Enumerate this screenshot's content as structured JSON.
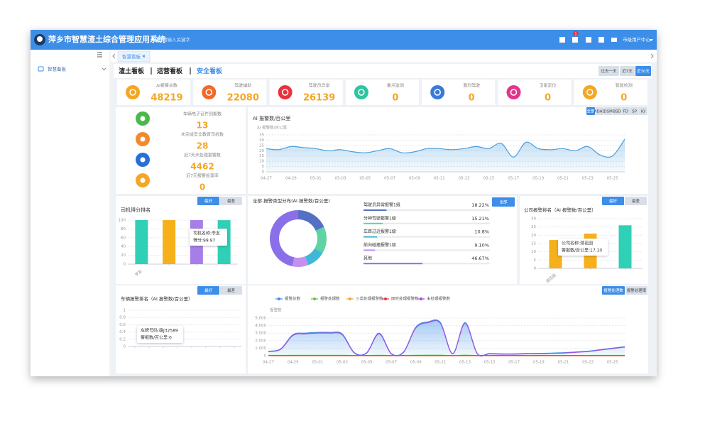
{
  "header": {
    "title": "萍乡市智慧渣土综合管理应用系统",
    "search_placeholder": "请输入关键字",
    "notification_count": 1,
    "user": "市级用户中心"
  },
  "sidebar": {
    "items": [
      "智慧看板"
    ]
  },
  "tabs": [
    "智慧看板"
  ],
  "board_tabs": [
    "渣土看板",
    "运营看板",
    "安全看板"
  ],
  "range_buttons": [
    "过去一天",
    "近7天",
    "近30天"
  ],
  "stat_cards": [
    {
      "label": "AI报警总数",
      "value": 48219,
      "color": "#f5a623"
    },
    {
      "label": "驾驶辅助",
      "value": 22080,
      "color": "#f06a2a"
    },
    {
      "label": "驾驶员异常",
      "value": 26139,
      "color": "#e8323c"
    },
    {
      "label": "重点监测",
      "value": 0,
      "color": "#2fc4a0"
    },
    {
      "label": "激烈驾驶",
      "value": 0,
      "color": "#3a7bd5"
    },
    {
      "label": "卫星定位",
      "value": 0,
      "color": "#e0368b"
    },
    {
      "label": "智能检测",
      "value": 0,
      "color": "#f5a623"
    }
  ],
  "summary": [
    {
      "label": "车辆电子证件到期数",
      "value": 13,
      "color": "#4cb84c"
    },
    {
      "label": "未完成安全教育司机数",
      "value": 28,
      "color": "#f08a2a"
    },
    {
      "label": "近7天未处理报警数",
      "value": 4462,
      "color": "#2a6fd8"
    },
    {
      "label": "近7天报警处理率",
      "value": 0,
      "color": "#f5a623"
    }
  ],
  "chart_data": [
    {
      "type": "line",
      "title": "AI 报警数/百公里",
      "y_label": "AI 报警数/百公里",
      "buttons": [
        "全部",
        "ADAS",
        "DSM",
        "BSD",
        "FD",
        "SP",
        "IO"
      ],
      "categories": [
        "04-27",
        null,
        "04-29",
        null,
        "05-01",
        null,
        "05-03",
        null,
        "05-05",
        null,
        "05-07",
        null,
        "05-09",
        null,
        "05-11",
        null,
        "05-13",
        null,
        "05-15",
        null,
        "05-17",
        null,
        "05-19",
        null,
        "05-21",
        null,
        "05-23",
        null,
        "05-25",
        null
      ],
      "values": [
        22,
        21,
        24,
        23,
        22,
        20,
        21,
        19,
        18,
        20,
        22,
        18,
        19,
        22,
        22,
        21,
        22,
        24,
        22,
        27,
        14,
        28,
        22,
        21,
        22,
        20,
        24,
        16,
        15,
        31
      ],
      "color": "#4a9fdc",
      "ylim": [
        0,
        35
      ],
      "yticks": [
        0,
        5,
        10,
        15,
        20,
        25,
        30,
        35
      ],
      "grid": true
    },
    {
      "type": "bar",
      "title": "司机得分排名",
      "buttons": [
        "最好",
        "最差"
      ],
      "categories": [
        "李友",
        null,
        null,
        null
      ],
      "values": [
        99.97,
        99.9,
        99.9,
        99.8
      ],
      "colors": [
        "#2fd0b5",
        "#f5b01a",
        "#a77ee8",
        "#2fd0b5"
      ],
      "tooltip": [
        "司机名称:李友",
        "得分:99.97"
      ],
      "ylim": [
        0,
        100
      ],
      "yticks": [
        0,
        20,
        40,
        60,
        80,
        100
      ],
      "grid": true
    },
    {
      "type": "pie",
      "title": "全部 报警类型分布(AI 报警数/百公里)",
      "buttons": [
        "全部"
      ],
      "categories": [
        "驾驶员异常报警1级",
        "分神驾驶报警1级",
        "车距过近报警1级",
        "前向碰撞报警1级",
        "其他"
      ],
      "values": [
        18.22,
        15.21,
        10.8,
        9.1,
        46.67
      ],
      "value_labels": [
        "18.22%",
        "15.21%",
        "10.8%",
        "9.10%",
        "46.67%"
      ],
      "colors": [
        "#5470c6",
        "#5fd3a3",
        "#3fb8d9",
        "#c58ff0",
        "#8a6fe8"
      ]
    },
    {
      "type": "bar",
      "title": "公司报警排名（AI 报警数/百公里）",
      "buttons": [
        "最好",
        "最差"
      ],
      "categories": [
        "湛花园",
        null,
        null
      ],
      "values": [
        17.1,
        21,
        26
      ],
      "colors": [
        "#f5b01a",
        "#f5b01a",
        "#2fd0b5"
      ],
      "tooltip": [
        "公司名称:湛花园",
        "警报数/百公里:17.10"
      ],
      "ylim": [
        0,
        30
      ],
      "yticks": [
        0,
        5,
        10,
        15,
        20,
        25,
        30
      ],
      "grid": true
    },
    {
      "type": "bar",
      "title": "车辆报警排名（AI 报警数/百公里）",
      "buttons": [
        "最好",
        "最差"
      ],
      "categories": [
        null,
        null,
        null,
        null,
        null,
        null,
        null,
        null
      ],
      "values": [
        0,
        0,
        0,
        0,
        0,
        0,
        0,
        0
      ],
      "colors": [
        "#2fd0b5"
      ],
      "tooltip": [
        "车牌号码:赣J32589",
        "警报数/百公里:0"
      ],
      "ylim": [
        0,
        1
      ],
      "yticks": [
        0,
        0.2,
        0.4,
        0.6,
        0.8,
        1
      ],
      "grid": true
    },
    {
      "type": "line",
      "y_label": "报警数",
      "buttons": [
        "报警处理数",
        "报警处理率"
      ],
      "categories": [
        "04-27",
        null,
        "04-29",
        null,
        "05-01",
        null,
        "05-03",
        null,
        "05-05",
        null,
        "05-07",
        null,
        "05-09",
        null,
        "05-11",
        null,
        "05-13",
        null,
        "05-15",
        null,
        "05-17",
        null,
        "05-19",
        null,
        "05-21",
        null,
        "05-23",
        null,
        "05-25",
        null
      ],
      "series": [
        {
          "name": "报警总数",
          "color": "#3d8ee8",
          "values": [
            600,
            900,
            2800,
            3000,
            3100,
            3100,
            2900,
            400,
            400,
            3000,
            300,
            500,
            3800,
            4500,
            4400,
            300,
            4400,
            300,
            300,
            250,
            250,
            300,
            300,
            350,
            400,
            500,
            600,
            800,
            1000,
            1200
          ]
        },
        {
          "name": "报警处理数",
          "color": "#67c23a",
          "values": [
            50,
            50,
            60,
            60,
            60,
            60,
            60,
            40,
            40,
            60,
            40,
            40,
            60,
            70,
            70,
            40,
            70,
            40,
            40,
            40,
            40,
            40,
            40,
            40,
            40,
            40,
            40,
            50,
            50,
            50
          ]
        },
        {
          "name": "三类处理报警数",
          "color": "#f5a623",
          "values": [
            0,
            0,
            0,
            0,
            0,
            0,
            0,
            0,
            0,
            0,
            0,
            0,
            0,
            0,
            0,
            0,
            0,
            0,
            0,
            0,
            0,
            0,
            0,
            0,
            0,
            0,
            0,
            0,
            0,
            0
          ]
        },
        {
          "name": "即时处理报警数",
          "color": "#e8323c",
          "values": [
            20,
            20,
            20,
            20,
            20,
            20,
            20,
            20,
            20,
            20,
            20,
            20,
            20,
            20,
            20,
            20,
            20,
            20,
            20,
            20,
            20,
            20,
            20,
            20,
            20,
            20,
            20,
            20,
            20,
            20
          ]
        },
        {
          "name": "未处理报警数",
          "color": "#a04ee0",
          "values": [
            550,
            850,
            2700,
            2900,
            3000,
            3000,
            2800,
            350,
            350,
            2900,
            250,
            450,
            3700,
            4400,
            4300,
            250,
            4300,
            250,
            250,
            200,
            200,
            250,
            250,
            300,
            350,
            450,
            550,
            750,
            950,
            1150
          ]
        }
      ],
      "ylim": [
        0,
        5000
      ],
      "yticks": [
        0,
        {
          "value": 1000,
          "label": "1,000"
        },
        {
          "value": 2000,
          "label": "2,000"
        },
        {
          "value": 3000,
          "label": "3,000"
        },
        {
          "value": 4000,
          "label": "4,000"
        },
        {
          "value": 5000,
          "label": "5,000"
        }
      ],
      "grid": true
    }
  ]
}
